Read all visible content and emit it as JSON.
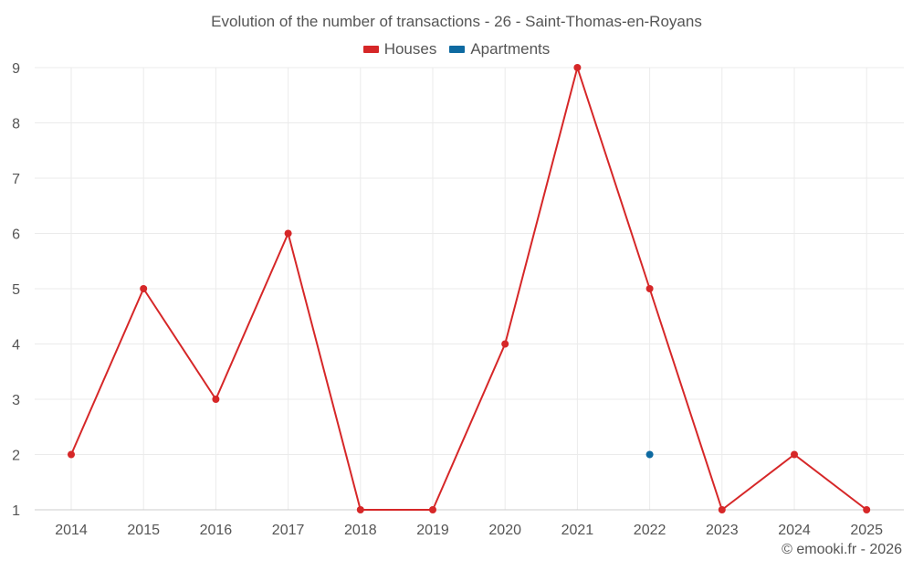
{
  "chart_data": {
    "type": "line",
    "title": "Evolution of the number of transactions - 26 - Saint-Thomas-en-Royans",
    "xlabel": "",
    "ylabel": "",
    "categories": [
      "2014",
      "2015",
      "2016",
      "2017",
      "2018",
      "2019",
      "2020",
      "2021",
      "2022",
      "2023",
      "2024",
      "2025"
    ],
    "ylim": [
      1,
      9
    ],
    "yticks": [
      "1",
      "2",
      "3",
      "4",
      "5",
      "6",
      "7",
      "8",
      "9"
    ],
    "grid": true,
    "legend_position": "top-center",
    "series": [
      {
        "name": "Houses",
        "color": "#d62728",
        "values": [
          2,
          5,
          3,
          6,
          1,
          1,
          4,
          9,
          5,
          1,
          2,
          1
        ]
      },
      {
        "name": "Apartments",
        "color": "#0e6aa1",
        "values": [
          null,
          null,
          null,
          null,
          null,
          null,
          null,
          null,
          2,
          null,
          null,
          null
        ]
      }
    ],
    "credit": "© emooki.fr - 2026"
  }
}
